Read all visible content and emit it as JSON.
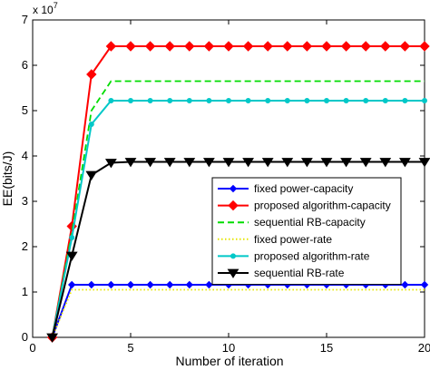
{
  "chart_data": {
    "type": "line",
    "title": "",
    "xlabel": "Number of iteration",
    "ylabel": "EE(bits/J)",
    "y_multiplier": "x 10^7",
    "y_multiplier_base": "x 10",
    "y_multiplier_exp": "7",
    "xlim": [
      0,
      20
    ],
    "ylim": [
      0,
      7
    ],
    "x_ticks": [
      0,
      5,
      10,
      15,
      20
    ],
    "y_ticks": [
      0,
      1,
      2,
      3,
      4,
      5,
      6,
      7
    ],
    "grid": false,
    "legend_position": "center-right",
    "x": [
      1,
      2,
      3,
      4,
      5,
      6,
      7,
      8,
      9,
      10,
      11,
      12,
      13,
      14,
      15,
      16,
      17,
      18,
      19,
      20
    ],
    "series": [
      {
        "name": "fixed power-capacity",
        "color": "#0000ff",
        "line": "solid",
        "marker": "diamond-small",
        "values": [
          0,
          1.16,
          1.16,
          1.16,
          1.16,
          1.16,
          1.16,
          1.16,
          1.16,
          1.16,
          1.16,
          1.16,
          1.16,
          1.16,
          1.16,
          1.16,
          1.16,
          1.16,
          1.16,
          1.16
        ]
      },
      {
        "name": "proposed algorithm-capacity",
        "color": "#ff0000",
        "line": "solid",
        "marker": "diamond",
        "values": [
          0,
          2.45,
          5.8,
          6.42,
          6.42,
          6.42,
          6.42,
          6.42,
          6.42,
          6.42,
          6.42,
          6.42,
          6.42,
          6.42,
          6.42,
          6.42,
          6.42,
          6.42,
          6.42,
          6.42
        ]
      },
      {
        "name": "sequential RB-capacity",
        "color": "#00dd00",
        "line": "dashed",
        "marker": "none",
        "values": [
          0,
          2.3,
          5.0,
          5.65,
          5.65,
          5.65,
          5.65,
          5.65,
          5.65,
          5.65,
          5.65,
          5.65,
          5.65,
          5.65,
          5.65,
          5.65,
          5.65,
          5.65,
          5.65,
          5.65
        ]
      },
      {
        "name": "fixed power-rate",
        "color": "#e6e600",
        "line": "dotted",
        "marker": "none",
        "values": [
          0,
          1.05,
          1.05,
          1.05,
          1.05,
          1.05,
          1.05,
          1.05,
          1.05,
          1.05,
          1.05,
          1.05,
          1.05,
          1.05,
          1.05,
          1.05,
          1.05,
          1.05,
          1.05,
          1.05
        ]
      },
      {
        "name": "proposed algorithm-rate",
        "color": "#00c8c8",
        "line": "solid",
        "marker": "dot",
        "values": [
          0,
          2.2,
          4.7,
          5.22,
          5.22,
          5.22,
          5.22,
          5.22,
          5.22,
          5.22,
          5.22,
          5.22,
          5.22,
          5.22,
          5.22,
          5.22,
          5.22,
          5.22,
          5.22,
          5.22
        ]
      },
      {
        "name": "sequential RB-rate",
        "color": "#000000",
        "line": "solid",
        "marker": "triangle-down",
        "values": [
          0,
          1.8,
          3.58,
          3.85,
          3.87,
          3.87,
          3.87,
          3.87,
          3.87,
          3.87,
          3.87,
          3.87,
          3.87,
          3.87,
          3.87,
          3.87,
          3.87,
          3.87,
          3.87,
          3.87
        ]
      }
    ]
  }
}
